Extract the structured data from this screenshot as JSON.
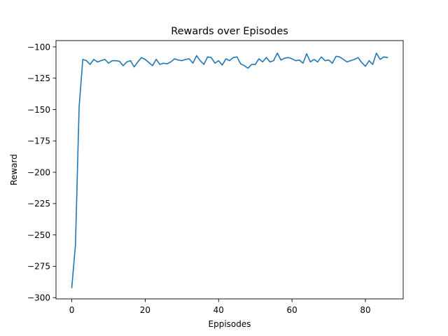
{
  "chart_data": {
    "type": "line",
    "title": "Rewards over Episodes",
    "xlabel": "Eppisodes",
    "ylabel": "Reward",
    "xlim": [
      -4.3,
      90.3
    ],
    "ylim": [
      -301,
      -95
    ],
    "xticks": [
      0,
      20,
      40,
      60,
      80
    ],
    "yticks": [
      -100,
      -125,
      -150,
      -175,
      -200,
      -225,
      -250,
      -275,
      -300
    ],
    "xtick_labels": [
      "0",
      "20",
      "40",
      "60",
      "80"
    ],
    "ytick_labels": [
      "−100",
      "−125",
      "−150",
      "−175",
      "−200",
      "−225",
      "−250",
      "−275",
      "−300"
    ],
    "grid": false,
    "series": [
      {
        "color": "#1f77b4",
        "x": [
          0,
          1,
          2,
          3,
          4,
          5,
          6,
          7,
          8,
          9,
          10,
          11,
          12,
          13,
          14,
          15,
          16,
          17,
          18,
          19,
          20,
          21,
          22,
          23,
          24,
          25,
          26,
          27,
          28,
          29,
          30,
          31,
          32,
          33,
          34,
          35,
          36,
          37,
          38,
          39,
          40,
          41,
          42,
          43,
          44,
          45,
          46,
          47,
          48,
          49,
          50,
          51,
          52,
          53,
          54,
          55,
          56,
          57,
          58,
          59,
          60,
          61,
          62,
          63,
          64,
          65,
          66,
          67,
          68,
          69,
          70,
          71,
          72,
          73,
          74,
          75,
          76,
          77,
          78,
          79,
          80,
          81,
          82,
          83,
          84,
          85,
          86
        ],
        "y": [
          -292,
          -258,
          -148,
          -110,
          -111,
          -114,
          -110,
          -112,
          -111,
          -110,
          -113,
          -111,
          -111,
          -111.5,
          -115,
          -112,
          -111,
          -116,
          -112,
          -108.5,
          -110,
          -112.5,
          -115,
          -110,
          -114,
          -113,
          -113.5,
          -112,
          -109.5,
          -110.5,
          -111,
          -110,
          -109.5,
          -113,
          -107,
          -111,
          -114,
          -108,
          -108.5,
          -113,
          -111,
          -114.5,
          -109.5,
          -111,
          -108.5,
          -108,
          -113.5,
          -115,
          -117,
          -114,
          -114,
          -109.5,
          -112,
          -108.5,
          -112,
          -111,
          -105,
          -110.5,
          -109,
          -108.5,
          -109.5,
          -111,
          -110.5,
          -113,
          -105.5,
          -112,
          -110,
          -112,
          -108,
          -111,
          -110.5,
          -113,
          -107.5,
          -108,
          -110,
          -112,
          -111,
          -110,
          -108.5,
          -112.5,
          -115.5,
          -111,
          -114,
          -105,
          -110,
          -108,
          -108.5
        ]
      }
    ]
  }
}
